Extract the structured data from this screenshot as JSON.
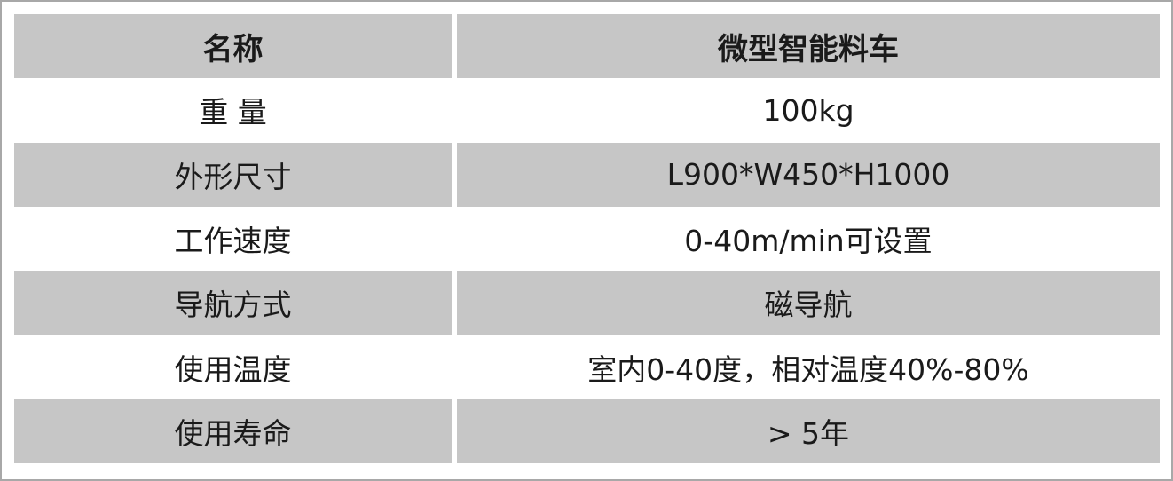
{
  "header": {
    "name": "名称",
    "value": "微型智能料车"
  },
  "rows": [
    {
      "name": "重 量",
      "value": "100kg"
    },
    {
      "name": "外形尺寸",
      "value": "L900*W450*H1000"
    },
    {
      "name": "工作速度",
      "value": "0-40m/min可设置"
    },
    {
      "name": "导航方式",
      "value": "磁导航"
    },
    {
      "name": "使用温度",
      "value": "室内0-40度，相对温度40%-80%"
    },
    {
      "name": "使用寿命",
      "value": "> 5年"
    }
  ],
  "colors": {
    "stripe": "#c6c6c6",
    "border": "#a8a8a8"
  }
}
